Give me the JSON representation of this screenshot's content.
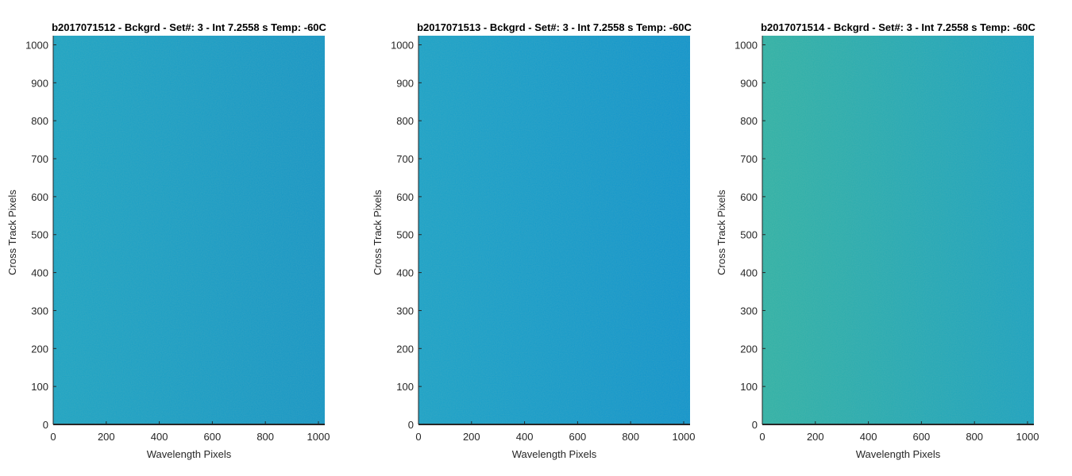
{
  "chart_data": [
    {
      "type": "heatmap",
      "title": "b2017071512 - Bckgrd - Set#: 3 - Int 7.2558 s Temp: -60C",
      "xlabel": "Wavelength Pixels",
      "ylabel": "Cross Track Pixels",
      "xlim": [
        0,
        1024
      ],
      "ylim": [
        0,
        1024
      ],
      "xticks": [
        0,
        200,
        400,
        600,
        800,
        1000
      ],
      "yticks": [
        0,
        100,
        200,
        300,
        400,
        500,
        600,
        700,
        800,
        900,
        1000
      ],
      "colors": {
        "left": "#1ba4c4",
        "right": "#1496c6"
      },
      "grid": false
    },
    {
      "type": "heatmap",
      "title": "b2017071513 - Bckgrd - Set#: 3 - Int 7.2558 s Temp: -60C",
      "xlabel": "Wavelength Pixels",
      "ylabel": "Cross Track Pixels",
      "xlim": [
        0,
        1024
      ],
      "ylim": [
        0,
        1024
      ],
      "xticks": [
        0,
        200,
        400,
        600,
        800,
        1000
      ],
      "yticks": [
        0,
        100,
        200,
        300,
        400,
        500,
        600,
        700,
        800,
        900,
        1000
      ],
      "colors": {
        "left": "#19a2c8",
        "right": "#0f94cc"
      },
      "grid": false
    },
    {
      "type": "heatmap",
      "title": "b2017071514 - Bckgrd - Set#: 3 - Int 7.2558 s Temp: -60C",
      "xlabel": "Wavelength Pixels",
      "ylabel": "Cross Track Pixels",
      "xlim": [
        0,
        1024
      ],
      "ylim": [
        0,
        1024
      ],
      "xticks": [
        0,
        200,
        400,
        600,
        800,
        1000
      ],
      "yticks": [
        0,
        100,
        200,
        300,
        400,
        500,
        600,
        700,
        800,
        900,
        1000
      ],
      "colors": {
        "left": "#2fb2a6",
        "right": "#1aa2c0"
      },
      "grid": false
    }
  ]
}
